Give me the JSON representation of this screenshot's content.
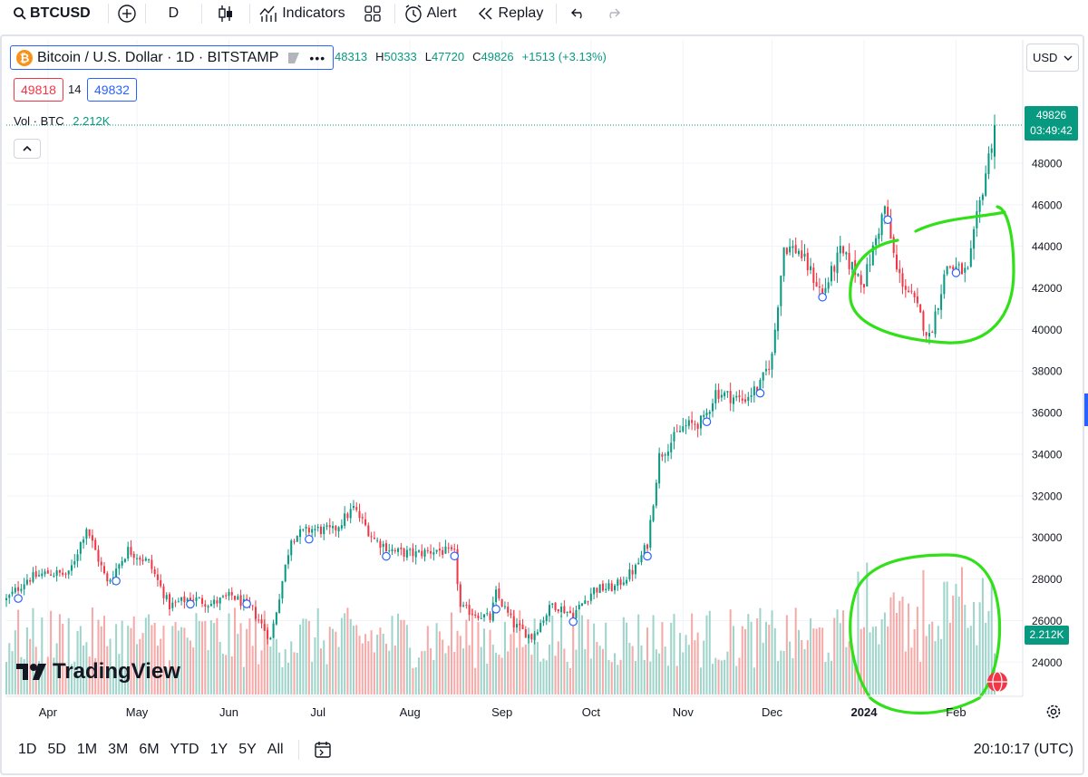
{
  "toolbar": {
    "symbol": "BTCUSD",
    "interval": "D",
    "indicators_label": "Indicators",
    "alert_label": "Alert",
    "replay_label": "Replay"
  },
  "legend": {
    "title": "Bitcoin / U.S. Dollar · 1D · BITSTAMP",
    "open": "48313",
    "high": "50333",
    "low": "47720",
    "close": "49826",
    "change": "+1513 (+3.13%)",
    "open_prefix": "",
    "high_prefix": "H",
    "low_prefix": "L",
    "close_prefix": "C",
    "bid": "49818",
    "spread": "14",
    "ask": "49832",
    "vol_label": "Vol · BTC",
    "vol_value": "2.212K"
  },
  "currency": "USD",
  "price_tag": {
    "price": "49826",
    "countdown": "03:49:42"
  },
  "volume_tag": "2.212K",
  "watermark": "TradingView",
  "bottom": {
    "ranges": [
      "1D",
      "5D",
      "1M",
      "3M",
      "6M",
      "YTD",
      "1Y",
      "5Y",
      "All"
    ],
    "clock": "20:10:17 (UTC)"
  },
  "colors": {
    "up": "#089981",
    "down": "#f23645",
    "vol_up": "#9fd4ca",
    "vol_down": "#f7a9a7",
    "annotation": "#32e01a",
    "bid": "#f23645",
    "ask": "#2962ff"
  },
  "chart_data": {
    "type": "candlestick",
    "title": "Bitcoin / U.S. Dollar · 1D · BITSTAMP",
    "y_axis": {
      "ticks": [
        24000,
        26000,
        28000,
        30000,
        32000,
        34000,
        36000,
        38000,
        40000,
        42000,
        44000,
        46000,
        48000
      ],
      "range": [
        22400,
        50700
      ]
    },
    "x_axis": {
      "labels": [
        "Apr",
        "May",
        "Jun",
        "Jul",
        "Aug",
        "Sep",
        "Oct",
        "Nov",
        "Dec",
        "2024",
        "Feb"
      ],
      "range": [
        "2023-03-18",
        "2024-02-14"
      ]
    },
    "anchors": [
      [
        "2023-03-18",
        27000
      ],
      [
        "2023-03-25",
        28000
      ],
      [
        "2023-04-01",
        28300
      ],
      [
        "2023-04-08",
        28200
      ],
      [
        "2023-04-14",
        30500
      ],
      [
        "2023-04-21",
        27800
      ],
      [
        "2023-04-28",
        29400
      ],
      [
        "2023-05-05",
        28800
      ],
      [
        "2023-05-12",
        26700
      ],
      [
        "2023-05-19",
        27100
      ],
      [
        "2023-05-26",
        26800
      ],
      [
        "2023-06-02",
        27200
      ],
      [
        "2023-06-09",
        26500
      ],
      [
        "2023-06-15",
        25100
      ],
      [
        "2023-06-22",
        30000
      ],
      [
        "2023-06-29",
        30400
      ],
      [
        "2023-07-06",
        30300
      ],
      [
        "2023-07-13",
        31400
      ],
      [
        "2023-07-20",
        29900
      ],
      [
        "2023-07-27",
        29300
      ],
      [
        "2023-08-03",
        29200
      ],
      [
        "2023-08-10",
        29400
      ],
      [
        "2023-08-16",
        29200
      ],
      [
        "2023-08-18",
        26600
      ],
      [
        "2023-08-28",
        26100
      ],
      [
        "2023-08-30",
        27300
      ],
      [
        "2023-09-05",
        25800
      ],
      [
        "2023-09-11",
        25200
      ],
      [
        "2023-09-18",
        26800
      ],
      [
        "2023-09-25",
        26300
      ],
      [
        "2023-10-02",
        27500
      ],
      [
        "2023-10-09",
        27600
      ],
      [
        "2023-10-16",
        28500
      ],
      [
        "2023-10-20",
        29700
      ],
      [
        "2023-10-24",
        33900
      ],
      [
        "2023-11-01",
        35300
      ],
      [
        "2023-11-08",
        35600
      ],
      [
        "2023-11-12",
        37000
      ],
      [
        "2023-11-21",
        36600
      ],
      [
        "2023-11-27",
        37300
      ],
      [
        "2023-12-01",
        38700
      ],
      [
        "2023-12-05",
        44000
      ],
      [
        "2023-12-10",
        43800
      ],
      [
        "2023-12-18",
        41700
      ],
      [
        "2023-12-24",
        43700
      ],
      [
        "2024-01-01",
        42300
      ],
      [
        "2024-01-08",
        45900
      ],
      [
        "2024-01-12",
        42800
      ],
      [
        "2024-01-18",
        41300
      ],
      [
        "2024-01-23",
        39600
      ],
      [
        "2024-01-29",
        43100
      ],
      [
        "2024-02-05",
        42700
      ],
      [
        "2024-02-08",
        45300
      ],
      [
        "2024-02-12",
        48300
      ],
      [
        "2024-02-14",
        49826
      ]
    ],
    "highlight_regions": [
      {
        "from": "2023-12-30",
        "to": "2024-02-14",
        "y_range": [
          38800,
          45200
        ]
      },
      {
        "from": "2023-12-30",
        "to": "2024-02-14",
        "series": "volume"
      }
    ]
  }
}
